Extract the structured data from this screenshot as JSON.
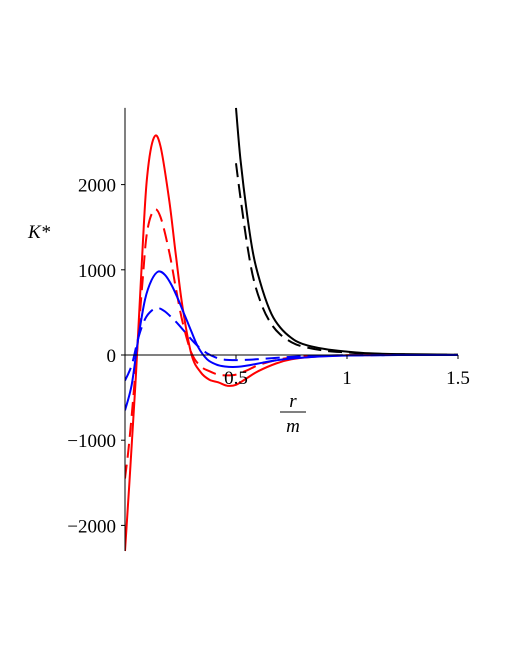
{
  "chart_data": {
    "type": "line",
    "title": "",
    "xlabel_num": "r",
    "xlabel_den": "m",
    "ylabel": "K*",
    "xlim": [
      0,
      1.5
    ],
    "ylim": [
      -2300,
      2900
    ],
    "x_ticks": [
      0.5,
      1,
      1.5
    ],
    "x_tick_labels": [
      "0.5",
      "1",
      "1.5"
    ],
    "y_ticks": [
      -2000,
      -1000,
      0,
      1000,
      2000
    ],
    "y_tick_labels": [
      "−2000",
      "−1000",
      "0",
      "1000",
      "2000"
    ],
    "grid": false,
    "legend": "none",
    "series": [
      {
        "color": "#000000",
        "dash": "solid",
        "x": [
          0.5,
          0.52,
          0.55,
          0.58,
          0.62,
          0.66,
          0.7,
          0.75,
          0.8,
          0.9,
          1.0,
          1.1,
          1.25,
          1.5
        ],
        "y": [
          2900,
          2300,
          1650,
          1150,
          760,
          480,
          320,
          200,
          130,
          70,
          40,
          20,
          10,
          3
        ]
      },
      {
        "color": "#000000",
        "dash": "dashed",
        "x": [
          0.5,
          0.52,
          0.55,
          0.58,
          0.62,
          0.66,
          0.7,
          0.75,
          0.8,
          0.9,
          1.0,
          1.1,
          1.25,
          1.5
        ],
        "y": [
          2250,
          1850,
          1300,
          880,
          560,
          360,
          240,
          150,
          100,
          50,
          30,
          15,
          7,
          2
        ]
      },
      {
        "color": "#ff0000",
        "dash": "solid",
        "x": [
          0.0,
          0.02,
          0.05,
          0.08,
          0.1,
          0.13,
          0.16,
          0.2,
          0.23,
          0.26,
          0.3,
          0.34,
          0.38,
          0.42,
          0.46,
          0.5,
          0.55,
          0.6,
          0.68,
          0.75,
          0.85,
          1.0,
          1.2,
          1.5
        ],
        "y": [
          -2300,
          -1500,
          -200,
          1300,
          2100,
          2550,
          2450,
          1800,
          1150,
          550,
          0,
          -200,
          -290,
          -320,
          -360,
          -350,
          -270,
          -190,
          -100,
          -50,
          -20,
          -5,
          0,
          0
        ]
      },
      {
        "color": "#ff0000",
        "dash": "dashed",
        "x": [
          0.0,
          0.02,
          0.05,
          0.08,
          0.1,
          0.13,
          0.16,
          0.2,
          0.23,
          0.26,
          0.3,
          0.34,
          0.38,
          0.42,
          0.46,
          0.5,
          0.55,
          0.6,
          0.68,
          0.75,
          0.85,
          1.0,
          1.2,
          1.5
        ],
        "y": [
          -1450,
          -1000,
          -100,
          900,
          1450,
          1700,
          1620,
          1200,
          770,
          380,
          20,
          -130,
          -190,
          -230,
          -240,
          -230,
          -180,
          -120,
          -60,
          -30,
          -10,
          -3,
          0,
          0
        ]
      },
      {
        "color": "#0000ff",
        "dash": "solid",
        "x": [
          0.0,
          0.03,
          0.06,
          0.09,
          0.12,
          0.15,
          0.18,
          0.21,
          0.24,
          0.27,
          0.3,
          0.33,
          0.37,
          0.41,
          0.45,
          0.5,
          0.56,
          0.62,
          0.7,
          0.8,
          0.95,
          1.1,
          1.3,
          1.5
        ],
        "y": [
          -650,
          -350,
          200,
          650,
          880,
          980,
          940,
          820,
          650,
          460,
          270,
          90,
          -50,
          -110,
          -135,
          -140,
          -120,
          -90,
          -55,
          -30,
          -10,
          -3,
          0,
          0
        ]
      },
      {
        "color": "#0000ff",
        "dash": "dashed",
        "x": [
          0.0,
          0.03,
          0.06,
          0.09,
          0.12,
          0.15,
          0.18,
          0.21,
          0.24,
          0.27,
          0.3,
          0.33,
          0.37,
          0.41,
          0.45,
          0.5,
          0.56,
          0.62,
          0.7,
          0.8,
          0.95,
          1.1,
          1.3,
          1.5
        ],
        "y": [
          -300,
          -120,
          200,
          420,
          520,
          550,
          510,
          440,
          360,
          270,
          180,
          100,
          20,
          -30,
          -55,
          -60,
          -55,
          -45,
          -30,
          -15,
          -5,
          -2,
          0,
          0
        ]
      }
    ]
  }
}
